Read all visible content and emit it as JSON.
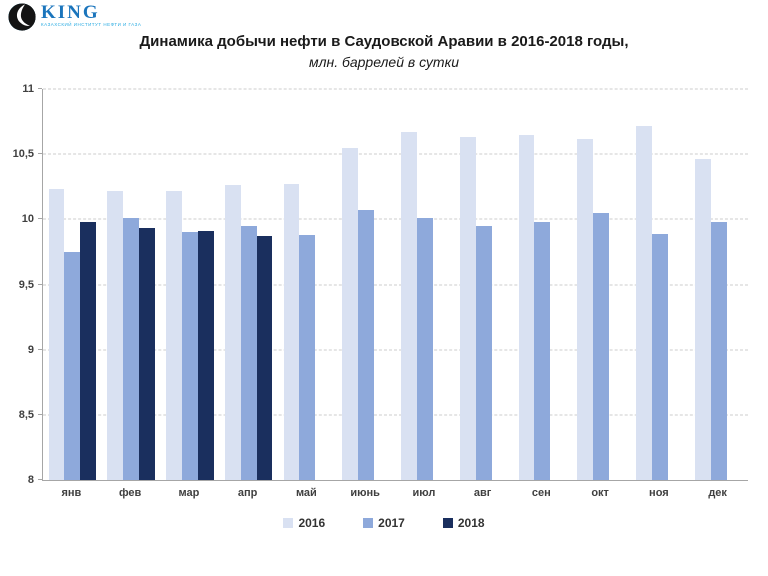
{
  "logo": {
    "acronym": "KING",
    "subtitle": "КАЗАХСКИЙ ИНСТИТУТ НЕФТИ И ГАЗА",
    "brand_blue": "#1B75BC",
    "brand_cyan": "#29ABE2"
  },
  "title": "Динамика добычи нефти в Саудовской Аравии в 2016-2018 годы,",
  "subtitle": "млн. баррелей в сутки",
  "chart_data": {
    "type": "bar",
    "categories": [
      "янв",
      "фев",
      "мар",
      "апр",
      "май",
      "июнь",
      "июл",
      "авг",
      "сен",
      "окт",
      "ноя",
      "дек"
    ],
    "series": [
      {
        "name": "2016",
        "color": "#D9E1F2",
        "values": [
          10.23,
          10.22,
          10.22,
          10.26,
          10.27,
          10.55,
          10.67,
          10.63,
          10.65,
          10.62,
          10.72,
          10.46
        ]
      },
      {
        "name": "2017",
        "color": "#8EA9DB",
        "values": [
          9.75,
          10.01,
          9.9,
          9.95,
          9.88,
          10.07,
          10.01,
          9.95,
          9.98,
          10.05,
          9.89,
          9.98
        ]
      },
      {
        "name": "2018",
        "color": "#1A2F5E",
        "values": [
          9.98,
          9.93,
          9.91,
          9.87,
          null,
          null,
          null,
          null,
          null,
          null,
          null,
          null
        ]
      }
    ],
    "ylim": [
      8,
      11
    ],
    "ytick_step": 0.5,
    "ytick_labels": [
      "8",
      "8,5",
      "9",
      "9,5",
      "10",
      "10,5",
      "11"
    ],
    "grid": "horizontal-dashed",
    "legend_position": "bottom",
    "axis_color": "#a6a6a6",
    "gridline_color": "#cdcdcd"
  }
}
